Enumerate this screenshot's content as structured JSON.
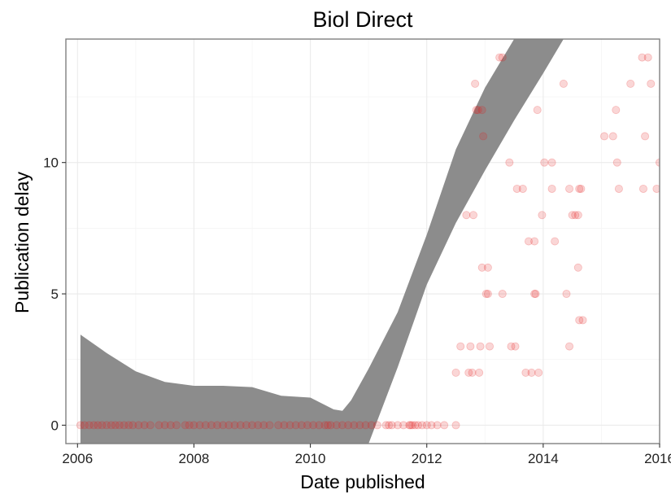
{
  "chart_data": {
    "type": "scatter",
    "title": "Biol Direct",
    "xlabel": "Date published",
    "ylabel": "Publication delay",
    "xlim": [
      2005.8,
      2016.0
    ],
    "ylim": [
      -0.7,
      14.7
    ],
    "x_ticks": [
      2006,
      2008,
      2010,
      2012,
      2014,
      2016
    ],
    "x_tick_labels": [
      "2006",
      "2008",
      "2010",
      "2012",
      "2014",
      "2016"
    ],
    "y_ticks": [
      0,
      5,
      10
    ],
    "y_tick_labels": [
      "0",
      "5",
      "10"
    ],
    "grid": true,
    "legend": "none",
    "point_color": "#e31a1c",
    "point_opacity": 0.18,
    "band_color": "#8c8c8c",
    "points": [
      [
        2006.05,
        0
      ],
      [
        2006.12,
        0
      ],
      [
        2006.2,
        0
      ],
      [
        2006.28,
        0
      ],
      [
        2006.35,
        0
      ],
      [
        2006.42,
        0
      ],
      [
        2006.5,
        0
      ],
      [
        2006.58,
        0
      ],
      [
        2006.65,
        0
      ],
      [
        2006.72,
        0
      ],
      [
        2006.8,
        0
      ],
      [
        2006.88,
        0
      ],
      [
        2006.95,
        0
      ],
      [
        2007.05,
        0
      ],
      [
        2007.15,
        0
      ],
      [
        2007.25,
        0
      ],
      [
        2007.4,
        0
      ],
      [
        2007.5,
        0
      ],
      [
        2007.6,
        0
      ],
      [
        2007.7,
        0
      ],
      [
        2007.85,
        0
      ],
      [
        2007.92,
        0
      ],
      [
        2008.0,
        0
      ],
      [
        2008.1,
        0
      ],
      [
        2008.2,
        0
      ],
      [
        2008.3,
        0
      ],
      [
        2008.4,
        0
      ],
      [
        2008.5,
        0
      ],
      [
        2008.6,
        0
      ],
      [
        2008.7,
        0
      ],
      [
        2008.8,
        0
      ],
      [
        2008.9,
        0
      ],
      [
        2009.0,
        0
      ],
      [
        2009.1,
        0
      ],
      [
        2009.2,
        0
      ],
      [
        2009.3,
        0
      ],
      [
        2009.45,
        0
      ],
      [
        2009.55,
        0
      ],
      [
        2009.65,
        0
      ],
      [
        2009.75,
        0
      ],
      [
        2009.85,
        0
      ],
      [
        2009.95,
        0
      ],
      [
        2010.05,
        0
      ],
      [
        2010.15,
        0
      ],
      [
        2010.25,
        0
      ],
      [
        2010.3,
        0
      ],
      [
        2010.35,
        0
      ],
      [
        2010.45,
        0
      ],
      [
        2010.55,
        0
      ],
      [
        2010.65,
        0
      ],
      [
        2010.75,
        0
      ],
      [
        2010.85,
        0
      ],
      [
        2010.95,
        0
      ],
      [
        2011.05,
        0
      ],
      [
        2011.15,
        0
      ],
      [
        2011.3,
        0
      ],
      [
        2011.35,
        0
      ],
      [
        2011.4,
        0
      ],
      [
        2011.5,
        0
      ],
      [
        2011.6,
        0
      ],
      [
        2011.7,
        0
      ],
      [
        2011.72,
        0
      ],
      [
        2011.75,
        0
      ],
      [
        2011.8,
        0
      ],
      [
        2011.85,
        0
      ],
      [
        2011.92,
        0
      ],
      [
        2012.0,
        0
      ],
      [
        2012.08,
        0
      ],
      [
        2012.18,
        0
      ],
      [
        2012.3,
        0
      ],
      [
        2012.5,
        0
      ],
      [
        2012.5,
        2
      ],
      [
        2012.58,
        3
      ],
      [
        2012.68,
        8
      ],
      [
        2012.72,
        2
      ],
      [
        2012.75,
        3
      ],
      [
        2012.78,
        2
      ],
      [
        2012.8,
        8
      ],
      [
        2012.83,
        13
      ],
      [
        2012.85,
        12
      ],
      [
        2012.88,
        12
      ],
      [
        2012.9,
        2
      ],
      [
        2012.92,
        3
      ],
      [
        2012.95,
        12
      ],
      [
        2012.95,
        6
      ],
      [
        2012.97,
        11
      ],
      [
        2013.02,
        5
      ],
      [
        2013.05,
        6
      ],
      [
        2013.05,
        5
      ],
      [
        2013.08,
        3
      ],
      [
        2013.25,
        14
      ],
      [
        2013.3,
        14
      ],
      [
        2013.3,
        5
      ],
      [
        2013.42,
        10
      ],
      [
        2013.45,
        3
      ],
      [
        2013.52,
        3
      ],
      [
        2013.55,
        9
      ],
      [
        2013.65,
        9
      ],
      [
        2013.7,
        2
      ],
      [
        2013.75,
        7
      ],
      [
        2013.8,
        2
      ],
      [
        2013.85,
        7
      ],
      [
        2013.85,
        5
      ],
      [
        2013.87,
        5
      ],
      [
        2013.9,
        12
      ],
      [
        2013.92,
        2
      ],
      [
        2013.98,
        8
      ],
      [
        2014.02,
        10
      ],
      [
        2014.15,
        10
      ],
      [
        2014.15,
        9
      ],
      [
        2014.2,
        7
      ],
      [
        2014.35,
        13
      ],
      [
        2014.4,
        5
      ],
      [
        2014.45,
        3
      ],
      [
        2014.45,
        9
      ],
      [
        2014.5,
        8
      ],
      [
        2014.55,
        8
      ],
      [
        2014.6,
        8
      ],
      [
        2014.62,
        9
      ],
      [
        2014.65,
        9
      ],
      [
        2014.6,
        6
      ],
      [
        2014.62,
        4
      ],
      [
        2014.68,
        4
      ],
      [
        2015.05,
        11
      ],
      [
        2015.2,
        11
      ],
      [
        2015.25,
        12
      ],
      [
        2015.27,
        10
      ],
      [
        2015.3,
        9
      ],
      [
        2015.5,
        13
      ],
      [
        2015.7,
        14
      ],
      [
        2015.72,
        9
      ],
      [
        2015.75,
        11
      ],
      [
        2015.8,
        14
      ],
      [
        2015.85,
        13
      ],
      [
        2015.95,
        9
      ],
      [
        2016.0,
        10
      ]
    ],
    "band": {
      "upper": [
        [
          2006.05,
          3.45
        ],
        [
          2006.5,
          2.75
        ],
        [
          2007.0,
          2.05
        ],
        [
          2007.5,
          1.65
        ],
        [
          2008.0,
          1.5
        ],
        [
          2008.5,
          1.5
        ],
        [
          2009.0,
          1.45
        ],
        [
          2009.5,
          1.12
        ],
        [
          2010.0,
          1.05
        ],
        [
          2010.4,
          0.6
        ],
        [
          2010.55,
          0.55
        ],
        [
          2010.7,
          0.95
        ],
        [
          2011.0,
          2.15
        ],
        [
          2011.5,
          4.3
        ],
        [
          2012.0,
          7.25
        ],
        [
          2012.5,
          10.5
        ],
        [
          2013.0,
          12.85
        ],
        [
          2013.5,
          14.7
        ]
      ],
      "lower": [
        [
          2006.05,
          -0.7
        ],
        [
          2011.0,
          -0.7
        ],
        [
          2011.5,
          2.2
        ],
        [
          2012.0,
          5.35
        ],
        [
          2012.5,
          7.7
        ],
        [
          2013.0,
          9.7
        ],
        [
          2013.5,
          11.6
        ],
        [
          2014.0,
          13.4
        ],
        [
          2014.35,
          14.7
        ]
      ]
    }
  }
}
